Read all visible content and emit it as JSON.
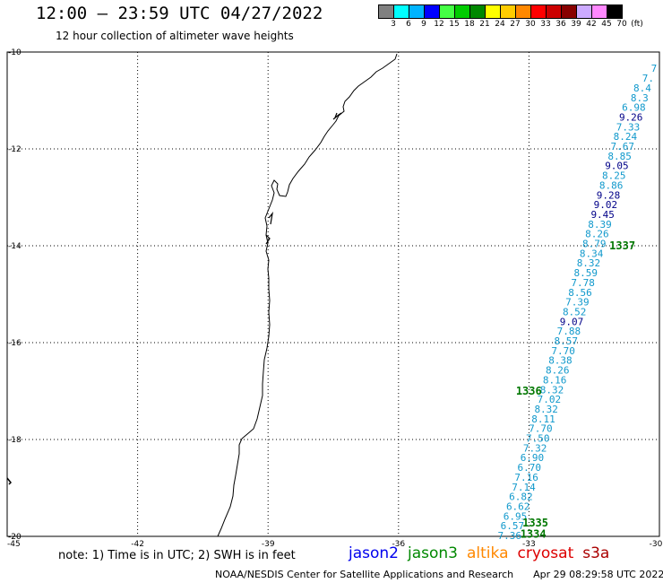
{
  "title": "12:00 – 23:59 UTC 04/27/2022",
  "subtitle": "12 hour collection of altimeter wave heights",
  "legend": {
    "colors": [
      "#808080",
      "#00ffff",
      "#00b4ff",
      "#0000ff",
      "#44ff44",
      "#00cc00",
      "#008800",
      "#ffff00",
      "#ffcc00",
      "#ff8800",
      "#ff0000",
      "#cc0000",
      "#880000",
      "#ccaaff",
      "#ff88ff",
      "#000000"
    ],
    "labels": [
      "3",
      "6",
      "9",
      "12",
      "15",
      "18",
      "21",
      "24",
      "27",
      "30",
      "33",
      "36",
      "39",
      "42",
      "45",
      "70",
      "(ft)"
    ]
  },
  "map": {
    "lon_range": [
      -45,
      -30
    ],
    "lat_range": [
      -20,
      -10
    ],
    "lon_ticks": [
      "-45",
      "-42",
      "-39",
      "-36",
      "-33",
      "-30"
    ],
    "lat_ticks": [
      "-10",
      "-12",
      "-14",
      "-16",
      "-18",
      "-20"
    ],
    "grid": true
  },
  "track": {
    "color_light": "#1199cc",
    "color_dark": "#000088",
    "values": [
      {
        "v": "7.36",
        "c": "light"
      },
      {
        "v": "6.57",
        "c": "light"
      },
      {
        "v": "6.95",
        "c": "light"
      },
      {
        "v": "6.62",
        "c": "light"
      },
      {
        "v": "6.82",
        "c": "light"
      },
      {
        "v": "7.14",
        "c": "light"
      },
      {
        "v": "7.16",
        "c": "light"
      },
      {
        "v": "6.70",
        "c": "light"
      },
      {
        "v": "6.90",
        "c": "light"
      },
      {
        "v": "7.32",
        "c": "light"
      },
      {
        "v": "7.50",
        "c": "light"
      },
      {
        "v": "7.70",
        "c": "light"
      },
      {
        "v": "8.11",
        "c": "light"
      },
      {
        "v": "8.32",
        "c": "light"
      },
      {
        "v": "7.02",
        "c": "light"
      },
      {
        "v": "8.32",
        "c": "light"
      },
      {
        "v": "8.16",
        "c": "light"
      },
      {
        "v": "8.26",
        "c": "light"
      },
      {
        "v": "8.38",
        "c": "light"
      },
      {
        "v": "7.70",
        "c": "light"
      },
      {
        "v": "8.57",
        "c": "light"
      },
      {
        "v": "7.88",
        "c": "light"
      },
      {
        "v": "9.07",
        "c": "dark"
      },
      {
        "v": "8.52",
        "c": "light"
      },
      {
        "v": "7.39",
        "c": "light"
      },
      {
        "v": "8.56",
        "c": "light"
      },
      {
        "v": "7.78",
        "c": "light"
      },
      {
        "v": "8.59",
        "c": "light"
      },
      {
        "v": "8.32",
        "c": "light"
      },
      {
        "v": "8.34",
        "c": "light"
      },
      {
        "v": "8.79",
        "c": "light"
      },
      {
        "v": "8.26",
        "c": "light"
      },
      {
        "v": "8.39",
        "c": "light"
      },
      {
        "v": "9.45",
        "c": "dark"
      },
      {
        "v": "9.02",
        "c": "dark"
      },
      {
        "v": "9.28",
        "c": "dark"
      },
      {
        "v": "8.86",
        "c": "light"
      },
      {
        "v": "8.25",
        "c": "light"
      },
      {
        "v": "9.05",
        "c": "dark"
      },
      {
        "v": "8.85",
        "c": "light"
      },
      {
        "v": "7.67",
        "c": "light"
      },
      {
        "v": "8.24",
        "c": "light"
      },
      {
        "v": "7.33",
        "c": "light"
      },
      {
        "v": "9.26",
        "c": "dark"
      },
      {
        "v": "6.98",
        "c": "light"
      },
      {
        "v": "8.3",
        "c": "light"
      },
      {
        "v": "8.4",
        "c": "light"
      },
      {
        "v": "7.",
        "c": "light"
      },
      {
        "v": "7",
        "c": "light"
      }
    ]
  },
  "pass_labels": [
    {
      "text": "1337",
      "lon": -31.15,
      "lat": -14.0
    },
    {
      "text": "1336",
      "lon": -33.3,
      "lat": -17.0
    },
    {
      "text": "1335",
      "lon": -33.15,
      "lat": -19.72
    },
    {
      "text": "1334",
      "lon": -33.2,
      "lat": -19.95
    }
  ],
  "pass_label_color": "#007700",
  "note": "note: 1) Time is in UTC; 2) SWH is in feet",
  "satellites": [
    {
      "name": "jason2",
      "color": "#0000ee"
    },
    {
      "name": "jason3",
      "color": "#008800"
    },
    {
      "name": "altika",
      "color": "#ff8800"
    },
    {
      "name": "cryosat",
      "color": "#dd0000"
    },
    {
      "name": "s3a",
      "color": "#aa0000"
    }
  ],
  "footer": {
    "org": "NOAA/NESDIS Center for Satellite Applications and Research",
    "timestamp": "Apr 29 08:29:58 UTC 2022"
  }
}
